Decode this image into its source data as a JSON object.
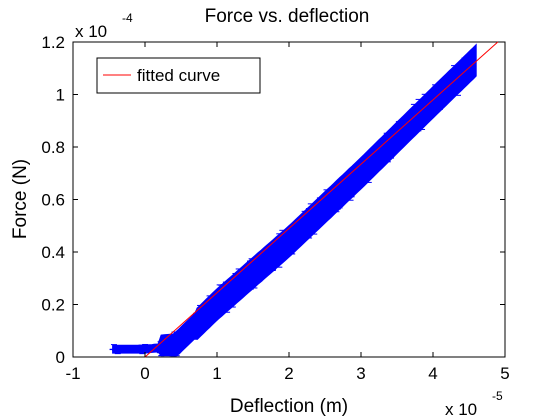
{
  "chart_data": {
    "type": "scatter",
    "title": "Force vs. deflection",
    "xlabel": "Deflection (m)",
    "ylabel": "Force (N)",
    "x_multiplier": "x 10",
    "x_multiplier_exponent": "-5",
    "y_multiplier": "x 10",
    "y_multiplier_exponent": "-4",
    "xlim": [
      -1,
      5
    ],
    "ylim": [
      0,
      1.2
    ],
    "x_ticks": [
      "-1",
      "0",
      "1",
      "2",
      "3",
      "4",
      "5"
    ],
    "y_ticks": [
      "0",
      "0.2",
      "0.4",
      "0.6",
      "0.8",
      "1",
      "1.2"
    ],
    "grid": false,
    "legend_position": "top-left",
    "series": [
      {
        "kind": "scatter-band",
        "color": "#0000ff",
        "center_line": [
          [
            -0.45,
            0.03
          ],
          [
            0.0,
            0.03
          ],
          [
            0.4,
            0.04
          ],
          [
            1.0,
            0.2
          ],
          [
            2.0,
            0.44
          ],
          [
            3.0,
            0.7
          ],
          [
            4.0,
            0.97
          ],
          [
            4.6,
            1.13
          ]
        ],
        "half_width": 0.06
      },
      {
        "name": "fitted curve",
        "kind": "line",
        "color": "#ff0000",
        "points": [
          [
            0.0,
            0.0
          ],
          [
            4.9,
            1.2
          ]
        ]
      }
    ]
  }
}
